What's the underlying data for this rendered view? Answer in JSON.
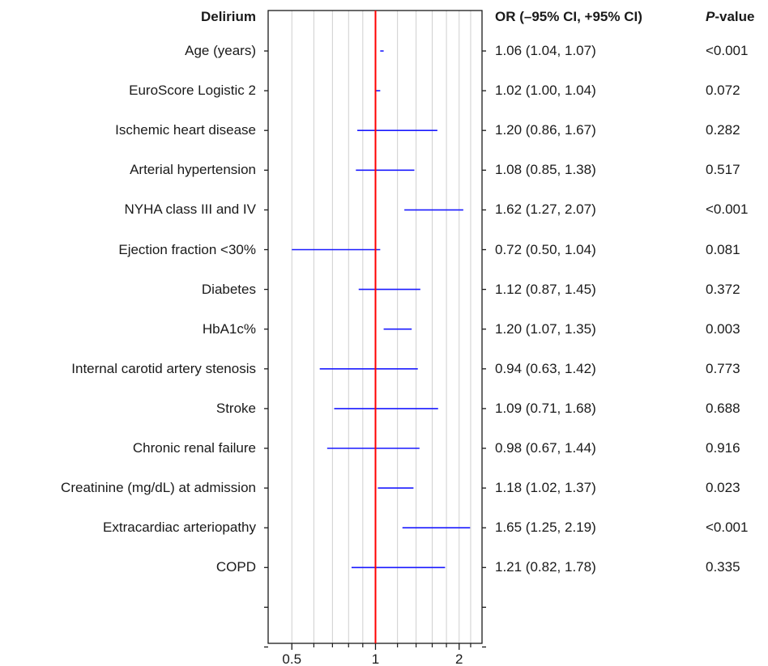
{
  "chart_data": {
    "type": "forest",
    "headers": {
      "label": "Delirium",
      "or": "OR (–95% CI, +95% CI)",
      "p_italic": "P",
      "p_rest": "-value"
    },
    "reference_value": 1,
    "x_scale": "log",
    "xlim": [
      0.38,
      2.5
    ],
    "x_ticks": [
      0.5,
      1,
      2
    ],
    "x_tick_labels": [
      "0.5",
      "1",
      "2"
    ],
    "minor_grid": [
      0.6,
      0.7,
      0.8,
      0.9,
      1.2,
      1.4,
      1.6,
      1.8,
      2.2
    ],
    "ci_color": "#1a1aff",
    "ref_color": "#ff0000",
    "rows": [
      {
        "label": "Age (years)",
        "or": 1.06,
        "lo": 1.04,
        "hi": 1.07,
        "or_text": "1.06 (1.04, 1.07)",
        "p": "<0.001"
      },
      {
        "label": "EuroScore Logistic 2",
        "or": 1.02,
        "lo": 1.0,
        "hi": 1.04,
        "or_text": "1.02 (1.00, 1.04)",
        "p": "0.072"
      },
      {
        "label": "Ischemic heart disease",
        "or": 1.2,
        "lo": 0.86,
        "hi": 1.67,
        "or_text": "1.20 (0.86, 1.67)",
        "p": "0.282"
      },
      {
        "label": "Arterial hypertension",
        "or": 1.08,
        "lo": 0.85,
        "hi": 1.38,
        "or_text": "1.08 (0.85, 1.38)",
        "p": "0.517"
      },
      {
        "label": "NYHA class III and IV",
        "or": 1.62,
        "lo": 1.27,
        "hi": 2.07,
        "or_text": "1.62 (1.27, 2.07)",
        "p": "<0.001"
      },
      {
        "label": "Ejection fraction <30%",
        "or": 0.72,
        "lo": 0.5,
        "hi": 1.04,
        "or_text": "0.72 (0.50, 1.04)",
        "p": "0.081"
      },
      {
        "label": "Diabetes",
        "or": 1.12,
        "lo": 0.87,
        "hi": 1.45,
        "or_text": "1.12 (0.87, 1.45)",
        "p": "0.372"
      },
      {
        "label": "HbA1c%",
        "or": 1.2,
        "lo": 1.07,
        "hi": 1.35,
        "or_text": "1.20 (1.07, 1.35)",
        "p": "0.003"
      },
      {
        "label": "Internal carotid artery stenosis",
        "or": 0.94,
        "lo": 0.63,
        "hi": 1.42,
        "or_text": "0.94 (0.63, 1.42)",
        "p": "0.773"
      },
      {
        "label": "Stroke",
        "or": 1.09,
        "lo": 0.71,
        "hi": 1.68,
        "or_text": "1.09 (0.71, 1.68)",
        "p": "0.688"
      },
      {
        "label": "Chronic renal failure",
        "or": 0.98,
        "lo": 0.67,
        "hi": 1.44,
        "or_text": "0.98 (0.67, 1.44)",
        "p": "0.916"
      },
      {
        "label": "Creatinine (mg/dL) at admission",
        "or": 1.18,
        "lo": 1.02,
        "hi": 1.37,
        "or_text": "1.18 (1.02, 1.37)",
        "p": "0.023"
      },
      {
        "label": "Extracardiac arteriopathy",
        "or": 1.65,
        "lo": 1.25,
        "hi": 2.19,
        "or_text": "1.65 (1.25, 2.19)",
        "p": "<0.001"
      },
      {
        "label": "COPD",
        "or": 1.21,
        "lo": 0.82,
        "hi": 1.78,
        "or_text": "1.21 (0.82, 1.78)",
        "p": "0.335"
      }
    ]
  }
}
